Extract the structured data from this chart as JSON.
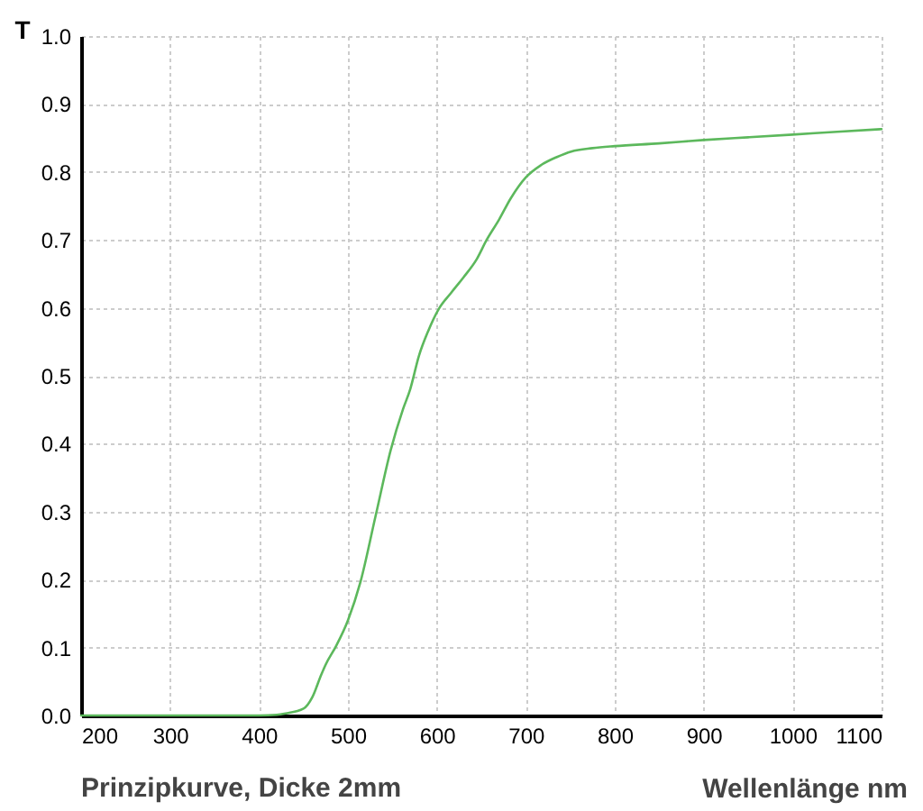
{
  "chart_data": {
    "type": "line",
    "xlabel": "Wellenlänge nm",
    "ylabel": "T",
    "annotations": [
      "Prinzipkurve, Dicke 2mm"
    ],
    "x": [
      200,
      300,
      400,
      420,
      430,
      450,
      460,
      470,
      475,
      487,
      500,
      514,
      531,
      548,
      562,
      570,
      580,
      590,
      602,
      616,
      630,
      645,
      656,
      670,
      683,
      700,
      717,
      735,
      751,
      775,
      800,
      850,
      900,
      950,
      1000,
      1050,
      1100
    ],
    "series": [
      {
        "color": "#5cb85c",
        "values": [
          0,
          0,
          0,
          0.001,
          0.003,
          0.01,
          0.027,
          0.06,
          0.075,
          0.103,
          0.14,
          0.196,
          0.293,
          0.39,
          0.451,
          0.48,
          0.53,
          0.565,
          0.598,
          0.622,
          0.645,
          0.672,
          0.7,
          0.73,
          0.761,
          0.792,
          0.81,
          0.822,
          0.83,
          0.835,
          0.838,
          0.842,
          0.847,
          0.851,
          0.855,
          0.859,
          0.863
        ]
      }
    ],
    "xlim": [
      200,
      1100
    ],
    "ylim": [
      0,
      1.0
    ],
    "xticks": [
      200,
      300,
      400,
      500,
      600,
      700,
      800,
      900,
      1000,
      1100
    ],
    "yticks": [
      {
        "value": 0,
        "label": "0.0"
      },
      0.1,
      0.2,
      0.3,
      0.4,
      0.5,
      0.6,
      0.7,
      0.8,
      0.9,
      {
        "value": 1.0,
        "label": "1.0"
      }
    ],
    "grid": true,
    "line_style": "solid"
  }
}
